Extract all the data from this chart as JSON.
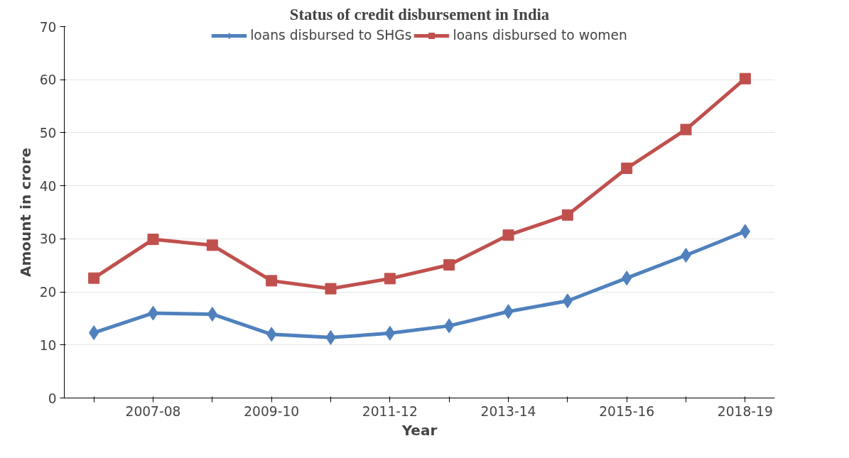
{
  "chart_data": {
    "type": "line",
    "title": "Status of credit disbursement in India",
    "xlabel": "Year",
    "ylabel": "Amount in crore",
    "categories": [
      null,
      "2007-08",
      null,
      "2009-10",
      null,
      "2011-12",
      null,
      "2013-14",
      null,
      "2015-16",
      null,
      "2018-19"
    ],
    "series": [
      {
        "name": "loans disbursed to SHGs",
        "color": "#4f81bd",
        "marker": "diamond",
        "values": [
          12.3,
          16.0,
          15.8,
          12.0,
          11.4,
          12.2,
          13.6,
          16.3,
          18.3,
          22.6,
          26.9,
          31.4
        ]
      },
      {
        "name": "loans disbursed to women",
        "color": "#c0504d",
        "marker": "square",
        "values": [
          22.6,
          29.9,
          28.8,
          22.1,
          20.6,
          22.5,
          25.1,
          30.7,
          34.5,
          43.3,
          50.6,
          60.2
        ]
      }
    ],
    "ylim": [
      0,
      70
    ],
    "yticks": [
      0,
      10,
      20,
      30,
      40,
      50,
      60,
      70
    ],
    "grid": "y",
    "legend": "top",
    "line_style": "solid"
  }
}
